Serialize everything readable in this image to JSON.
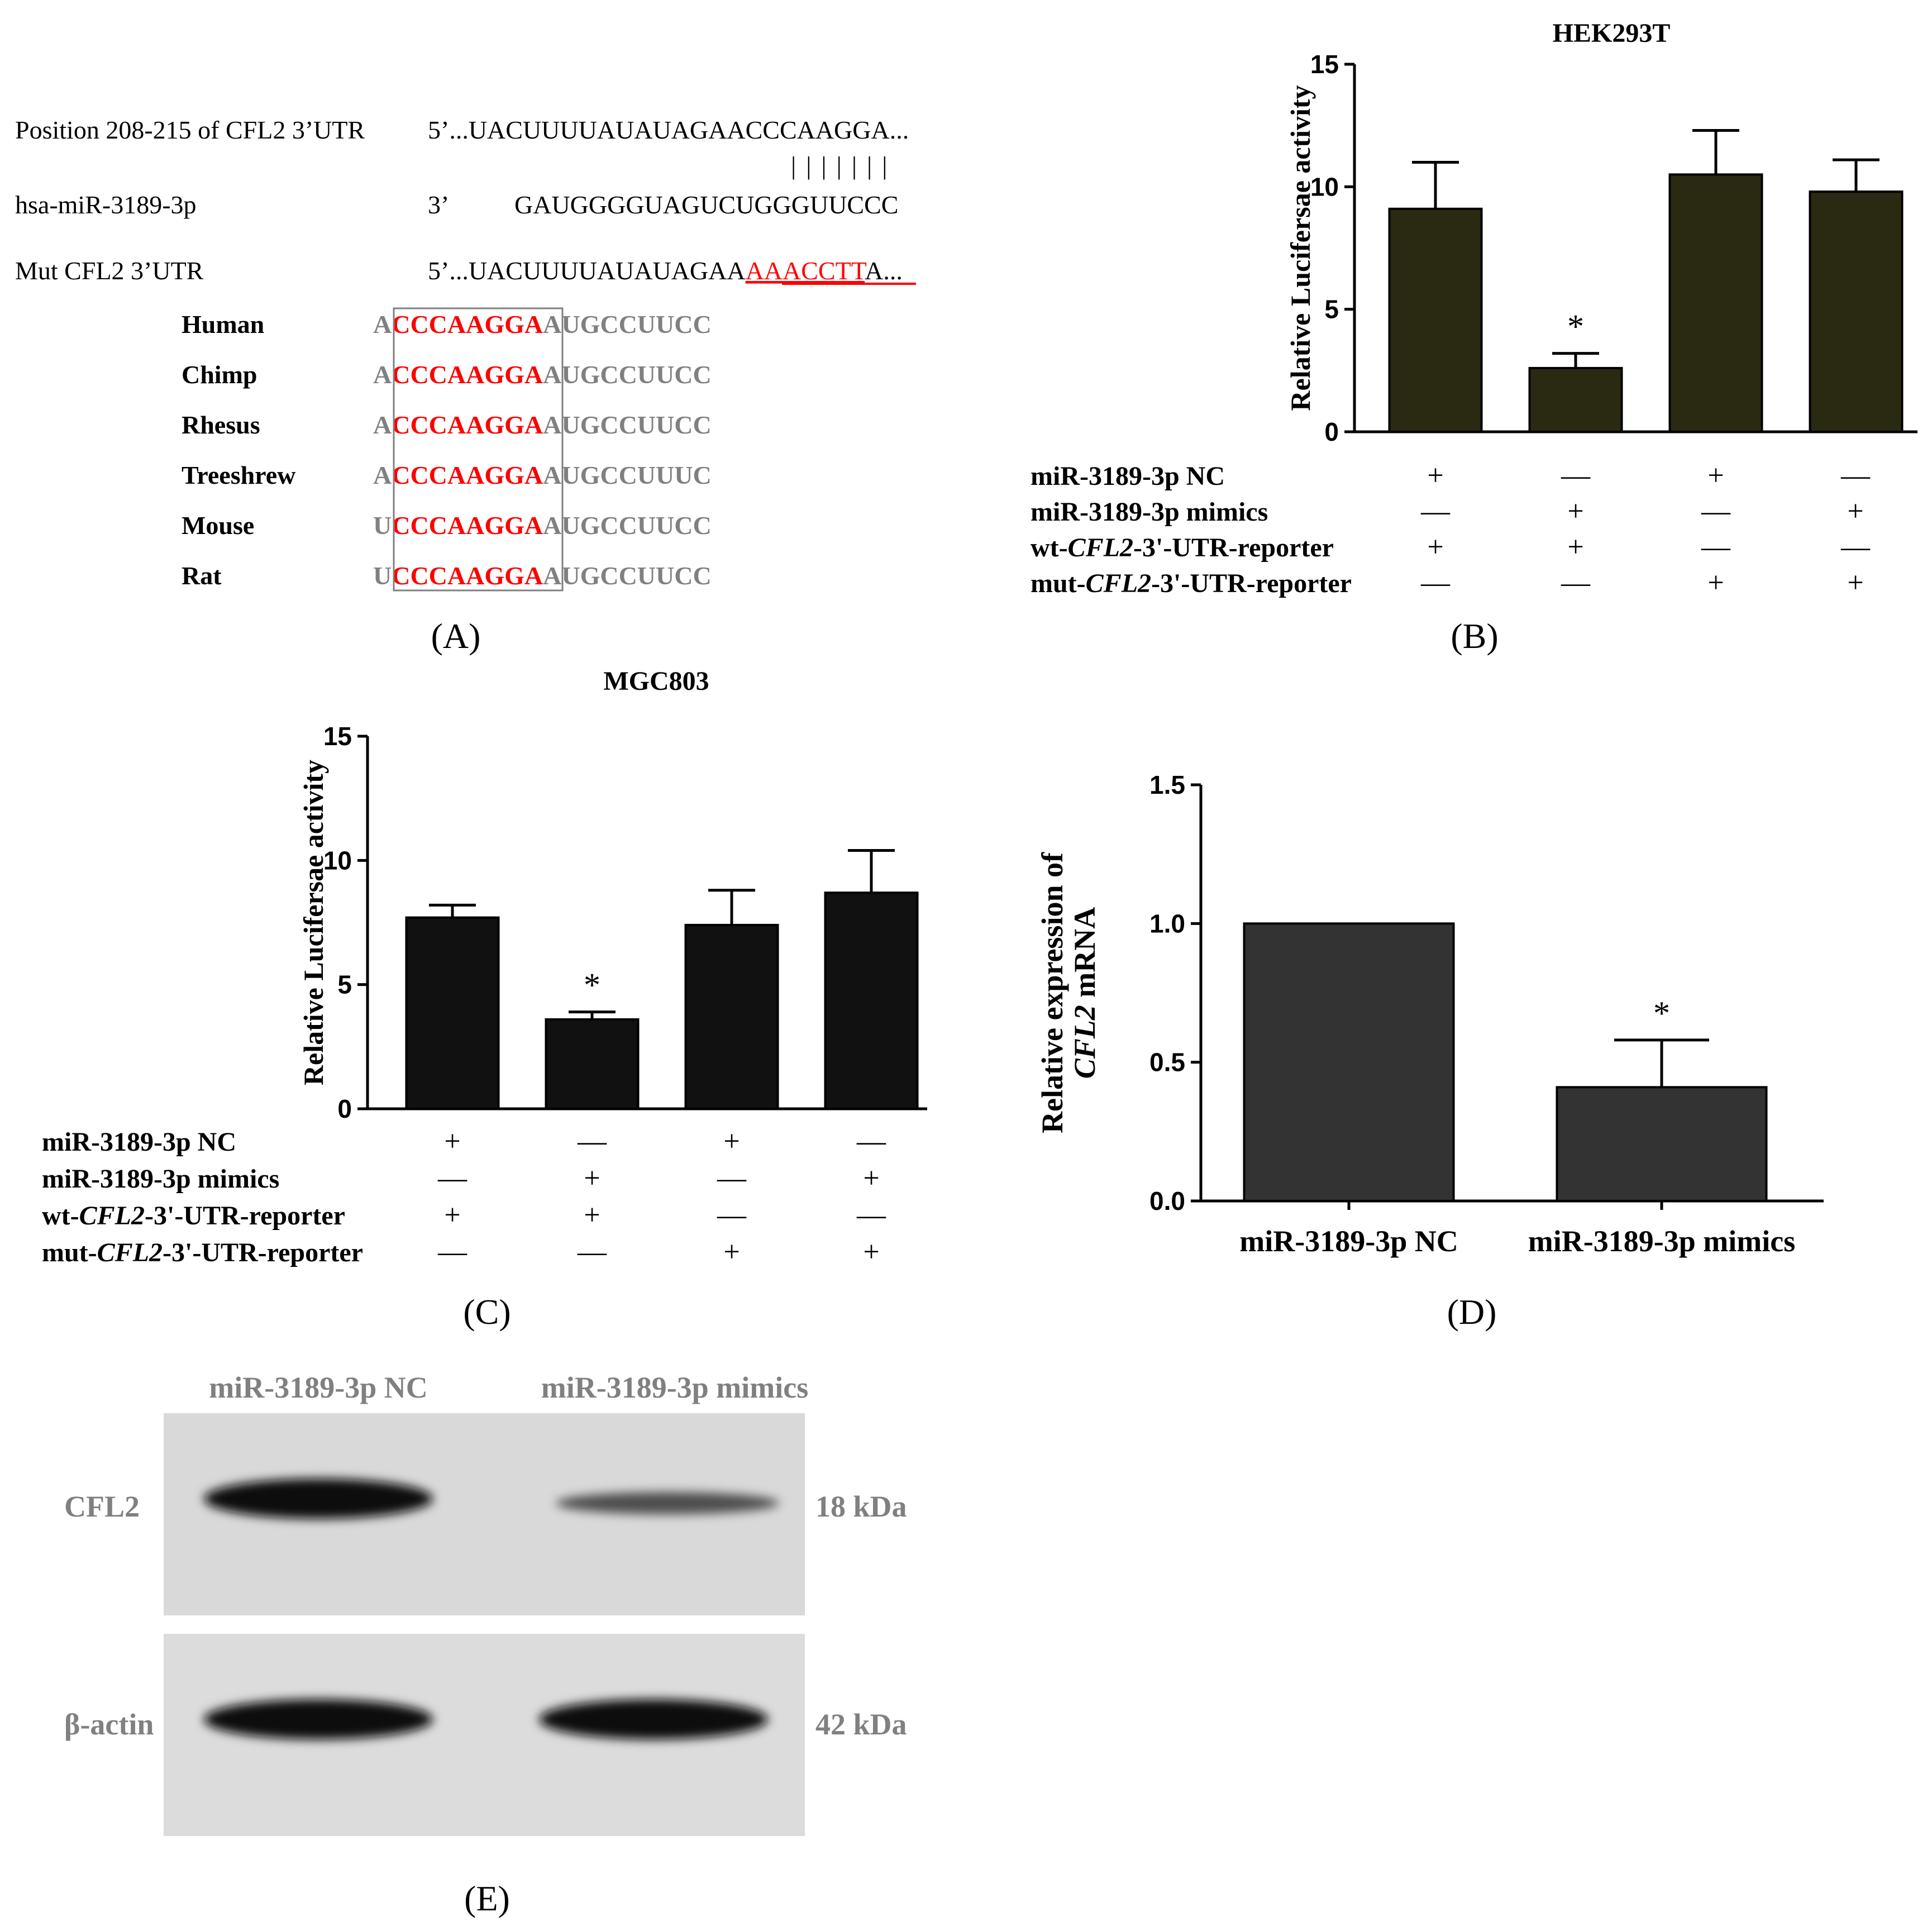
{
  "panels": {
    "A": {
      "letter": "(A)",
      "alignment": {
        "rows": [
          {
            "label": "Position 208-215 of CFL2 3’UTR",
            "prefix": "5’...UACUUUUAUAUAGAACCCAAGGA...",
            "mut": "",
            "suffix": ""
          },
          {
            "label": "hsa-miR-3189-3p",
            "prefix": "3’",
            "mut": "",
            "suffix": "GAUGGGGUAGUCUGGGUUCCC"
          },
          {
            "label": "Mut CFL2  3’UTR",
            "prefix": "5’...UACUUUUAUAUAGAA",
            "mut": "AAACCTT",
            "suffix": "A..."
          }
        ],
        "pairing_marks": "|||||||"
      },
      "conservation": [
        {
          "species": "Human",
          "first": "A",
          "seed": "CCCAAGGA",
          "rest": "AUGCCUUCC"
        },
        {
          "species": "Chimp",
          "first": "A",
          "seed": "CCCAAGGA",
          "rest": "AUGCCUUCC"
        },
        {
          "species": "Rhesus",
          "first": "A",
          "seed": "CCCAAGGA",
          "rest": "AUGCCUUCC"
        },
        {
          "species": "Treeshrew",
          "first": "A",
          "seed": "CCCAAGGA",
          "rest": "AUGCCUUUC"
        },
        {
          "species": "Mouse",
          "first": "U",
          "seed": "CCCAAGGA",
          "rest": "AUGCCUUCC"
        },
        {
          "species": "Rat",
          "first": "U",
          "seed": "CCCAAGGA",
          "rest": "AUGCCUUCC"
        }
      ]
    },
    "B": {
      "letter": "(B)"
    },
    "C": {
      "letter": "(C)"
    },
    "D": {
      "letter": "(D)"
    },
    "E": {
      "letter": "(E)",
      "lanes": [
        "miR-3189-3p NC",
        "miR-3189-3p mimics"
      ],
      "blots": [
        {
          "protein": "CFL2",
          "size": "18 kDa",
          "band_intensity": [
            1.0,
            0.45
          ]
        },
        {
          "protein": "β-actin",
          "size": "42 kDa",
          "band_intensity": [
            1.0,
            1.0
          ]
        }
      ]
    }
  },
  "condition_table": {
    "rows": [
      {
        "label_parts": [
          "miR-3189-3p NC"
        ],
        "values": [
          "+",
          "—",
          "+",
          "—"
        ]
      },
      {
        "label_parts": [
          "miR-3189-3p mimics"
        ],
        "values": [
          "—",
          "+",
          "—",
          "+"
        ]
      },
      {
        "label_parts": [
          "wt-",
          "CFL2",
          "-3'-UTR-reporter"
        ],
        "values": [
          "+",
          "+",
          "—",
          "—"
        ]
      },
      {
        "label_parts": [
          "mut-",
          "CFL2",
          "-3'-UTR-reporter"
        ],
        "values": [
          "—",
          "—",
          "+",
          "+"
        ]
      }
    ]
  },
  "colors": {
    "seed_red": "#ff0000",
    "species_gray": "#808080",
    "bar_B": "#2a2a13",
    "bar_C": "#111111",
    "bar_D": "#333333",
    "blot_bg": "#d9d9d9"
  },
  "chart_data": [
    {
      "type": "bar",
      "panel": "B",
      "title": "HEK293T",
      "ylabel": "Relative Lucifersae activity",
      "ylim": [
        0,
        15
      ],
      "yticks": [
        0,
        5,
        10,
        15
      ],
      "values": [
        9.1,
        2.6,
        10.5,
        9.8
      ],
      "errors": [
        1.9,
        0.6,
        1.8,
        1.3
      ],
      "annotations": [
        "",
        "*",
        "",
        ""
      ]
    },
    {
      "type": "bar",
      "panel": "C",
      "title": "MGC803",
      "ylabel": "Relative Lucifersae activity",
      "ylim": [
        0,
        15
      ],
      "yticks": [
        0,
        5,
        10,
        15
      ],
      "values": [
        7.7,
        3.6,
        7.4,
        8.7
      ],
      "errors": [
        0.5,
        0.3,
        1.4,
        1.7
      ],
      "annotations": [
        "",
        "*",
        "",
        ""
      ]
    },
    {
      "type": "bar",
      "panel": "D",
      "title": "",
      "ylabel_parts": [
        "Relative expression of",
        "CFL2",
        " mRNA"
      ],
      "ylim": [
        0,
        1.5
      ],
      "yticks": [
        "0.0",
        "0.5",
        "1.0",
        "1.5"
      ],
      "categories": [
        "miR-3189-3p NC",
        "miR-3189-3p mimics"
      ],
      "values": [
        1.0,
        0.41
      ],
      "errors": [
        0,
        0.17
      ],
      "annotations": [
        "",
        "*"
      ]
    }
  ]
}
